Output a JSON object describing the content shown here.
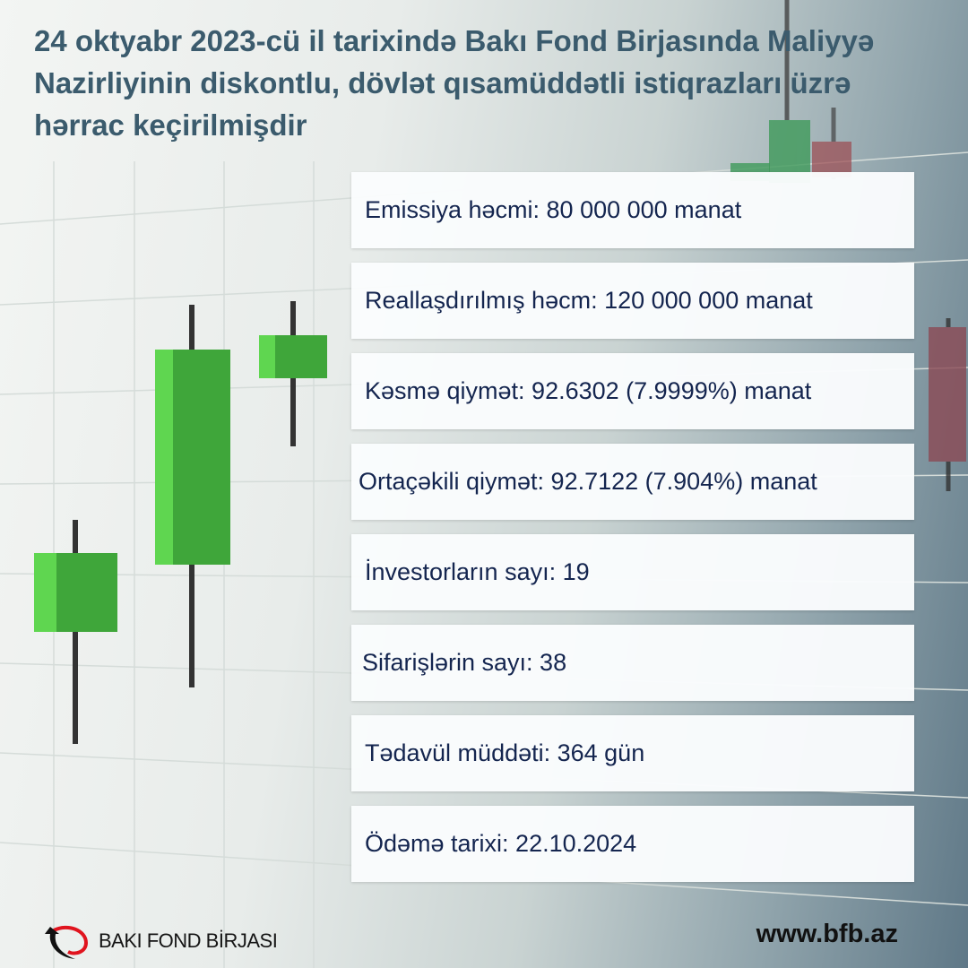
{
  "title": "24 oktyabr 2023-cü il tarixində Bakı Fond Birjasında Maliyyə Nazirliyinin diskontlu, dövlət qısamüddətli istiqrazları üzrə hərrac keçirilmişdir",
  "items": [
    "Emissiya həcmi: 80 000 000 manat",
    "Reallaşdırılmış həcm: 120 000 000 manat",
    "Kəsmə qiymət: 92.6302 (7.9999%) manat",
    "Ortaçəkili qiymət: 92.7122 (7.904%) manat",
    "İnvestorların sayı: 19",
    "Sifarişlərin sayı: 38",
    "Tədavül müddəti: 364 gün",
    "Ödəmə tarixi: 22.10.2024"
  ],
  "footer": {
    "logo_text": "BAKI FOND BİRJASI",
    "website": "www.bfb.az"
  },
  "colors": {
    "title": "#3b5b6d",
    "text": "#14254f",
    "green": "#4cc23f",
    "red": "#d9534f"
  }
}
